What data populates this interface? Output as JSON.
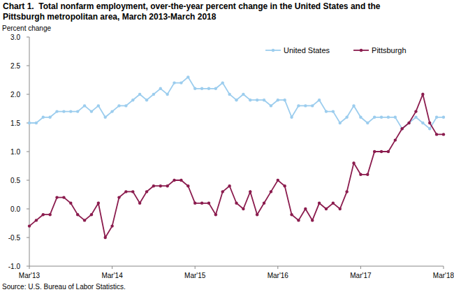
{
  "chart_data": {
    "type": "line",
    "title": "Chart 1.  Total nonfarm employment, over-the-year percent change in the United States and the Pittsburgh metropolitan area, March 2013-March 2018",
    "y_label": "Percent change",
    "source": "Source: U.S. Bureau of Labor Statistics.",
    "categories": [
      "Mar'13",
      null,
      null,
      null,
      null,
      null,
      null,
      null,
      null,
      null,
      null,
      null,
      "Mar'14",
      null,
      null,
      null,
      null,
      null,
      null,
      null,
      null,
      null,
      null,
      null,
      "Mar'15",
      null,
      null,
      null,
      null,
      null,
      null,
      null,
      null,
      null,
      null,
      null,
      "Mar'16",
      null,
      null,
      null,
      null,
      null,
      null,
      null,
      null,
      null,
      null,
      null,
      "Mar'17",
      null,
      null,
      null,
      null,
      null,
      null,
      null,
      null,
      null,
      null,
      null,
      "Mar'18"
    ],
    "series": [
      {
        "name": "United States",
        "color": "#9ccdee",
        "marker": "circle",
        "values": [
          1.5,
          1.5,
          1.6,
          1.6,
          1.7,
          1.7,
          1.7,
          1.7,
          1.8,
          1.7,
          1.8,
          1.6,
          1.7,
          1.8,
          1.8,
          1.9,
          2.0,
          1.9,
          2.0,
          2.1,
          2.0,
          2.2,
          2.2,
          2.3,
          2.1,
          2.1,
          2.1,
          2.1,
          2.2,
          2.0,
          1.9,
          2.0,
          1.9,
          1.9,
          1.9,
          1.8,
          1.9,
          1.9,
          1.6,
          1.8,
          1.8,
          1.8,
          1.9,
          1.7,
          1.7,
          1.5,
          1.6,
          1.8,
          1.6,
          1.5,
          1.6,
          1.6,
          1.6,
          1.6,
          1.4,
          1.5,
          1.6,
          1.5,
          1.4,
          1.6,
          1.6
        ]
      },
      {
        "name": "Pittsburgh",
        "color": "#8b1c4e",
        "marker": "circle",
        "values": [
          -0.3,
          -0.2,
          -0.1,
          -0.1,
          0.2,
          0.2,
          0.1,
          -0.1,
          -0.2,
          -0.1,
          0.1,
          -0.5,
          -0.3,
          0.2,
          0.3,
          0.3,
          0.1,
          0.3,
          0.4,
          0.4,
          0.4,
          0.5,
          0.5,
          0.4,
          0.1,
          0.1,
          0.1,
          -0.1,
          0.3,
          0.4,
          0.1,
          0.0,
          0.3,
          -0.1,
          0.1,
          0.3,
          0.5,
          0.4,
          -0.1,
          -0.2,
          0.0,
          -0.2,
          0.1,
          0.0,
          0.1,
          0.0,
          0.3,
          0.8,
          0.6,
          0.6,
          1.0,
          1.0,
          1.0,
          1.2,
          1.4,
          1.5,
          1.7,
          2.0,
          1.5,
          1.3,
          1.3
        ]
      }
    ],
    "ylim": [
      -1,
      3
    ],
    "yticks": [
      {
        "value": -1,
        "label": "-1.0"
      },
      {
        "value": -0.5,
        "label": "-0.5"
      },
      {
        "value": 0,
        "label": "0.0"
      },
      {
        "value": 0.5,
        "label": "0.5"
      },
      {
        "value": 1,
        "label": "1.0"
      },
      {
        "value": 1.5,
        "label": "1.5"
      },
      {
        "value": 2,
        "label": "2.0"
      },
      {
        "value": 2.5,
        "label": "2.5"
      },
      {
        "value": 3,
        "label": "3.0"
      }
    ],
    "grid": false,
    "legend": "top-right"
  }
}
